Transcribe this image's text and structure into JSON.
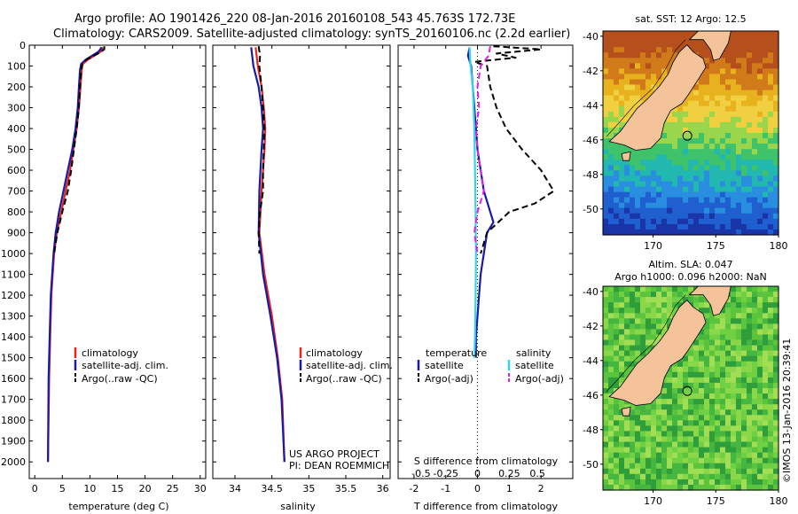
{
  "header": {
    "line1": "Argo profile: AO 1901426_220 08-Jan-2016 20160108_543 45.763S 172.73E",
    "line2": "Climatology: CARS2009. Satellite-adjusted climatology: synTS_20160106.nc (2.2d earlier)"
  },
  "credit": {
    "project": "US ARGO PROJECT",
    "pi": "PI: DEAN ROEMMICH",
    "imos": "©IMOS 13-Jan-2016 20:39:41"
  },
  "colors": {
    "climatology": "#e8231b",
    "satellite": "#1a1aa8",
    "argo": "#000000",
    "sal_satellite": "#33d6e8",
    "sal_argo": "#e020e0",
    "land": "#f4c39a"
  },
  "chart_data": [
    {
      "id": "temperature",
      "type": "line",
      "xlabel": "temperature (deg C)",
      "xlim": [
        -1,
        31
      ],
      "xticks": [
        0,
        5,
        10,
        15,
        20,
        25,
        30
      ],
      "ylim": [
        2080,
        0
      ],
      "yticks": [
        0,
        100,
        200,
        300,
        400,
        500,
        600,
        700,
        800,
        900,
        1000,
        1100,
        1200,
        1300,
        1400,
        1500,
        1600,
        1700,
        1800,
        1900,
        2000
      ],
      "legend": [
        "climatology",
        "satellite-adj. clim.",
        "Argo(..raw -QC)"
      ],
      "series": [
        {
          "name": "climatology",
          "color": "#e8231b",
          "style": "solid",
          "depth": [
            10,
            30,
            50,
            70,
            90,
            120,
            200,
            300,
            400,
            500,
            600,
            700,
            800,
            900,
            1000,
            1200,
            1400,
            1600,
            2000
          ],
          "values": [
            12.3,
            12.0,
            10.8,
            9.6,
            8.7,
            8.5,
            8.3,
            8.0,
            7.6,
            7.0,
            6.4,
            5.6,
            4.8,
            4.0,
            3.5,
            3.0,
            2.8,
            2.6,
            2.4
          ]
        },
        {
          "name": "satellite-adj. clim.",
          "color": "#1a1aa8",
          "style": "solid",
          "depth": [
            10,
            30,
            50,
            70,
            90,
            120,
            200,
            300,
            400,
            500,
            600,
            700,
            800,
            900,
            1000,
            1200,
            1400,
            1600,
            2000
          ],
          "values": [
            12.1,
            11.6,
            10.4,
            9.2,
            8.4,
            8.2,
            8.0,
            7.8,
            7.4,
            6.8,
            6.0,
            5.2,
            4.4,
            3.8,
            3.4,
            2.9,
            2.7,
            2.5,
            2.4
          ]
        },
        {
          "name": "Argo(..raw -QC)",
          "color": "#000000",
          "style": "dash",
          "depth": [
            5,
            20,
            40,
            55,
            70,
            90,
            120,
            200,
            300,
            400,
            500,
            600,
            700,
            800,
            900,
            1000
          ],
          "values": [
            12.6,
            12.6,
            11.5,
            10.3,
            9.3,
            8.6,
            8.4,
            8.2,
            8.0,
            7.6,
            7.1,
            6.6,
            6.0,
            5.0,
            4.1,
            3.5
          ]
        }
      ]
    },
    {
      "id": "salinity",
      "type": "line",
      "xlabel": "salinity",
      "xlim": [
        33.7,
        36.1
      ],
      "xticks": [
        34,
        34.5,
        35,
        35.5,
        36
      ],
      "xticklabels": [
        "34",
        "34.5",
        "35",
        "35.5",
        "36"
      ],
      "ylim": [
        2080,
        0
      ],
      "legend": [
        "climatology",
        "satellite-adj. clim.",
        "Argo(..raw -QC)"
      ],
      "series": [
        {
          "name": "climatology",
          "color": "#e8231b",
          "style": "solid",
          "depth": [
            10,
            100,
            200,
            300,
            400,
            500,
            700,
            900,
            1100,
            1300,
            1500,
            1700,
            2000
          ],
          "values": [
            34.28,
            34.31,
            34.36,
            34.39,
            34.41,
            34.4,
            34.36,
            34.33,
            34.4,
            34.5,
            34.58,
            34.64,
            34.67
          ]
        },
        {
          "name": "satellite-adj. clim.",
          "color": "#1a1aa8",
          "style": "solid",
          "depth": [
            10,
            100,
            200,
            300,
            400,
            500,
            700,
            900,
            1100,
            1300,
            1500,
            1700,
            2000
          ],
          "values": [
            34.22,
            34.25,
            34.32,
            34.36,
            34.38,
            34.36,
            34.33,
            34.32,
            34.38,
            34.48,
            34.57,
            34.63,
            34.67
          ]
        },
        {
          "name": "Argo(..raw -QC)",
          "color": "#000000",
          "style": "dash",
          "depth": [
            5,
            50,
            100,
            200,
            300,
            400,
            500,
            600,
            700,
            800,
            900,
            1000
          ],
          "values": [
            34.32,
            34.34,
            34.33,
            34.36,
            34.38,
            34.4,
            34.39,
            34.38,
            34.38,
            34.34,
            34.32,
            34.33
          ]
        }
      ]
    },
    {
      "id": "difference",
      "type": "line",
      "xlabel": "T difference from climatology",
      "xlim": [
        -2.5,
        3
      ],
      "xticks": [
        -2,
        -1,
        0,
        1,
        2
      ],
      "top_axis_label": "S difference from climatology",
      "top_ticklabels": [
        "-0.5",
        "-0.25",
        "0",
        "0.25",
        "0.5"
      ],
      "ylim": [
        2080,
        0
      ],
      "legend_left_title": "temperature",
      "legend_left": [
        "satellite",
        "Argo(-adj)"
      ],
      "legend_right_title": "salinity",
      "legend_right": [
        "satellite",
        "Argo(-adj)"
      ],
      "series": [
        {
          "name": "temperature satellite",
          "color": "#1a1aa8",
          "style": "solid",
          "depth": [
            10,
            50,
            100,
            200,
            300,
            400,
            500,
            600,
            700,
            800,
            850,
            900,
            1000,
            1100,
            1200,
            1400,
            1500
          ],
          "values": [
            -0.25,
            -0.3,
            -0.2,
            -0.15,
            -0.1,
            -0.05,
            0.0,
            0.1,
            0.2,
            0.4,
            0.5,
            0.3,
            0.2,
            0.1,
            0.05,
            -0.05,
            -0.05
          ]
        },
        {
          "name": "temperature Argo(-adj)",
          "color": "#000000",
          "style": "dash",
          "depth": [
            5,
            20,
            40,
            60,
            80,
            100,
            200,
            300,
            400,
            500,
            600,
            700,
            760,
            800,
            900,
            1000
          ],
          "values": [
            0.5,
            2.0,
            0.6,
            1.2,
            -0.1,
            0.3,
            0.4,
            0.6,
            0.9,
            1.4,
            2.0,
            2.4,
            1.8,
            1.0,
            0.3,
            0.1
          ]
        },
        {
          "name": "salinity satellite",
          "color": "#33d6e8",
          "style": "solid",
          "depth": [
            10,
            100,
            200,
            400,
            600,
            800,
            1000,
            1200,
            1400,
            1500
          ],
          "values": [
            -0.25,
            -0.22,
            -0.15,
            -0.1,
            -0.08,
            -0.06,
            -0.05,
            -0.06,
            -0.08,
            -0.1
          ]
        },
        {
          "name": "salinity Argo(-adj)",
          "color": "#e020e0",
          "style": "dash",
          "depth": [
            5,
            50,
            100,
            200,
            300,
            400,
            500,
            600,
            700,
            800,
            900,
            1000
          ],
          "values": [
            0.4,
            0.35,
            0.1,
            0.0,
            0.05,
            -0.05,
            0.0,
            0.1,
            0.2,
            0.0,
            -0.1,
            0.0
          ]
        }
      ]
    },
    {
      "id": "sst_map",
      "type": "heatmap",
      "title": "sat. SST: 12 Argo: 12.5",
      "xlim": [
        166,
        180
      ],
      "ylim": [
        -51.5,
        -39.7
      ],
      "xticks": [
        170,
        175,
        180
      ],
      "yticks": [
        -40,
        -42,
        -44,
        -46,
        -48,
        -50
      ],
      "argo_marker": {
        "lon": 172.73,
        "lat": -45.763
      }
    },
    {
      "id": "sla_map",
      "type": "heatmap",
      "title_line1": "Altim. SLA: 0.047",
      "title_line2": "Argo h1000: 0.096 h2000: NaN",
      "xlim": [
        166,
        180
      ],
      "ylim": [
        -51.5,
        -39.7
      ],
      "xticks": [
        170,
        175,
        180
      ],
      "yticks": [
        -40,
        -42,
        -44,
        -46,
        -48,
        -50
      ],
      "argo_marker": {
        "lon": 172.73,
        "lat": -45.763
      }
    }
  ]
}
